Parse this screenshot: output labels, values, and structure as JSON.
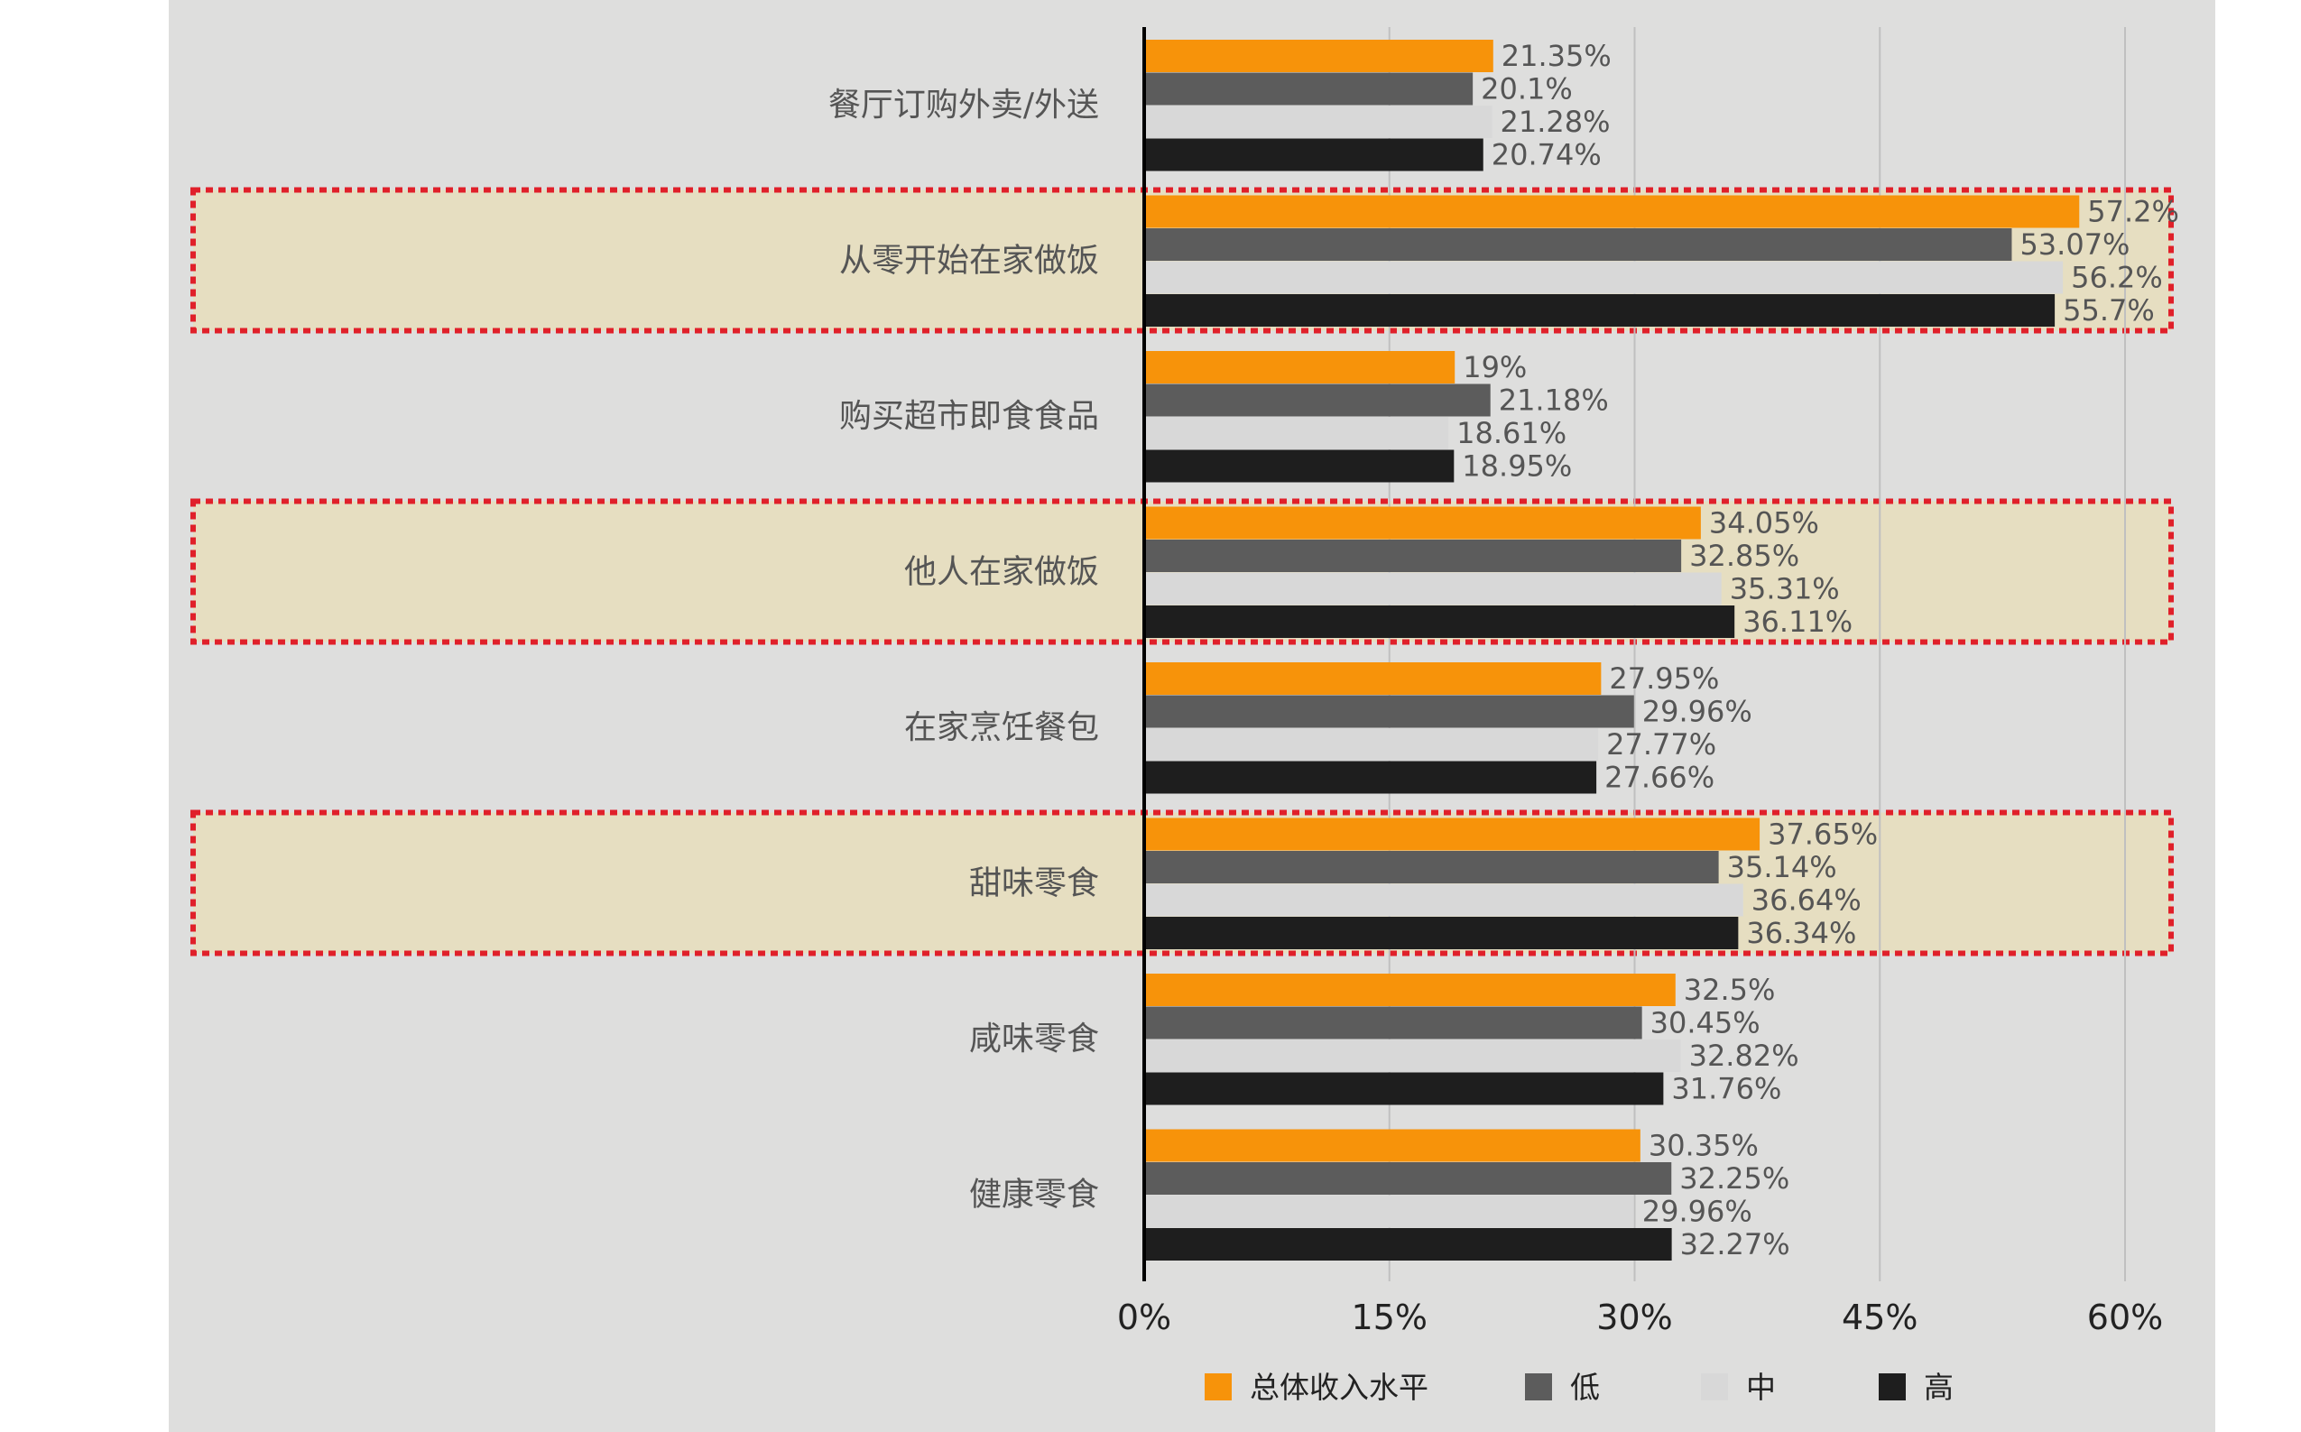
{
  "chart_data": {
    "type": "bar",
    "orientation": "horizontal",
    "title": "",
    "xlabel": "",
    "ylabel": "",
    "xlim": [
      0,
      60
    ],
    "x_ticks": [
      "0%",
      "15%",
      "30%",
      "45%",
      "60%"
    ],
    "grid": true,
    "legend_position": "bottom",
    "categories": [
      "餐厅订购外卖/外送",
      "从零开始在家做饭",
      "购买超市即食食品",
      "他人在家做饭",
      "在家烹饪餐包",
      "甜味零食",
      "咸味零食",
      "健康零食"
    ],
    "highlighted_categories": [
      "从零开始在家做饭",
      "他人在家做饭",
      "甜味零食"
    ],
    "series": [
      {
        "name": "总体收入水平",
        "color": "#f7930a",
        "values": [
          21.35,
          57.2,
          19,
          34.05,
          27.95,
          37.65,
          32.5,
          30.35
        ],
        "labels": [
          "21.35%",
          "57.2%",
          "19%",
          "34.05%",
          "27.95%",
          "37.65%",
          "32.5%",
          "30.35%"
        ]
      },
      {
        "name": "低",
        "color": "#5c5c5c",
        "values": [
          20.1,
          53.07,
          21.18,
          32.85,
          29.96,
          35.14,
          30.45,
          32.25
        ],
        "labels": [
          "20.1%",
          "53.07%",
          "21.18%",
          "32.85%",
          "29.96%",
          "35.14%",
          "30.45%",
          "32.25%"
        ]
      },
      {
        "name": "中",
        "color": "#d8d8d8",
        "values": [
          21.28,
          56.2,
          18.61,
          35.31,
          27.77,
          36.64,
          32.82,
          29.96
        ],
        "labels": [
          "21.28%",
          "56.2%",
          "18.61%",
          "35.31%",
          "27.77%",
          "36.64%",
          "32.82%",
          "29.96%"
        ]
      },
      {
        "name": "高",
        "color": "#1e1e1e",
        "values": [
          20.74,
          55.7,
          18.95,
          36.11,
          27.66,
          36.34,
          31.76,
          32.27
        ],
        "labels": [
          "20.74%",
          "55.7%",
          "18.95%",
          "36.11%",
          "27.66%",
          "36.34%",
          "31.76%",
          "32.27%"
        ]
      }
    ],
    "colors": {
      "highlight_fill": "#e6dec1",
      "highlight_border": "#e0202a",
      "grid": "#c0c0c0",
      "axis": "#000000"
    }
  }
}
